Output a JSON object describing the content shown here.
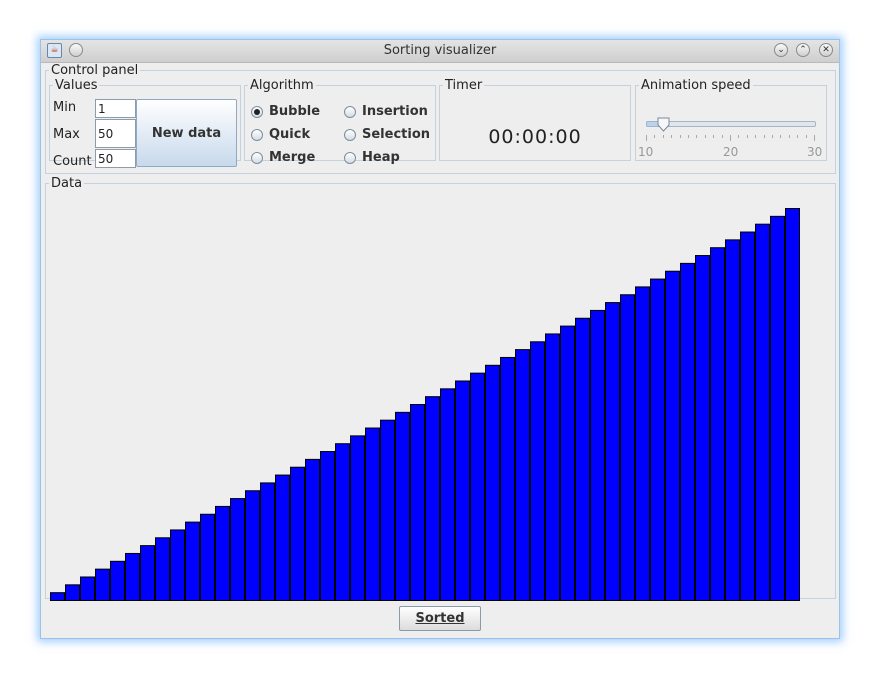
{
  "window": {
    "title": "Sorting visualizer"
  },
  "control_panel": {
    "title": "Control panel",
    "values": {
      "title": "Values",
      "min_label": "Min",
      "min_value": "1",
      "max_label": "Max",
      "max_value": "50",
      "count_label": "Count",
      "count_value": "50",
      "new_data_label": "New data"
    },
    "algorithm": {
      "title": "Algorithm",
      "options": [
        "Bubble",
        "Insertion",
        "Quick",
        "Selection",
        "Merge",
        "Heap"
      ],
      "selected": "Bubble"
    },
    "timer": {
      "title": "Timer",
      "value": "00:00:00"
    },
    "animation_speed": {
      "title": "Animation speed",
      "min": 10,
      "max": 30,
      "value": 12,
      "tick_labels": [
        "10",
        "20",
        "30"
      ]
    }
  },
  "data_panel": {
    "title": "Data"
  },
  "status_button": {
    "label": "Sorted"
  },
  "colors": {
    "bar_fill": "#0000ff",
    "bar_stroke": "#000000"
  },
  "chart_data": {
    "type": "bar",
    "values": [
      1,
      2,
      3,
      4,
      5,
      6,
      7,
      8,
      9,
      10,
      11,
      12,
      13,
      14,
      15,
      16,
      17,
      18,
      19,
      20,
      21,
      22,
      23,
      24,
      25,
      26,
      27,
      28,
      29,
      30,
      31,
      32,
      33,
      34,
      35,
      36,
      37,
      38,
      39,
      40,
      41,
      42,
      43,
      44,
      45,
      46,
      47,
      48,
      49,
      50
    ],
    "ylim": [
      0,
      50
    ],
    "grid": false,
    "legend": "none"
  }
}
